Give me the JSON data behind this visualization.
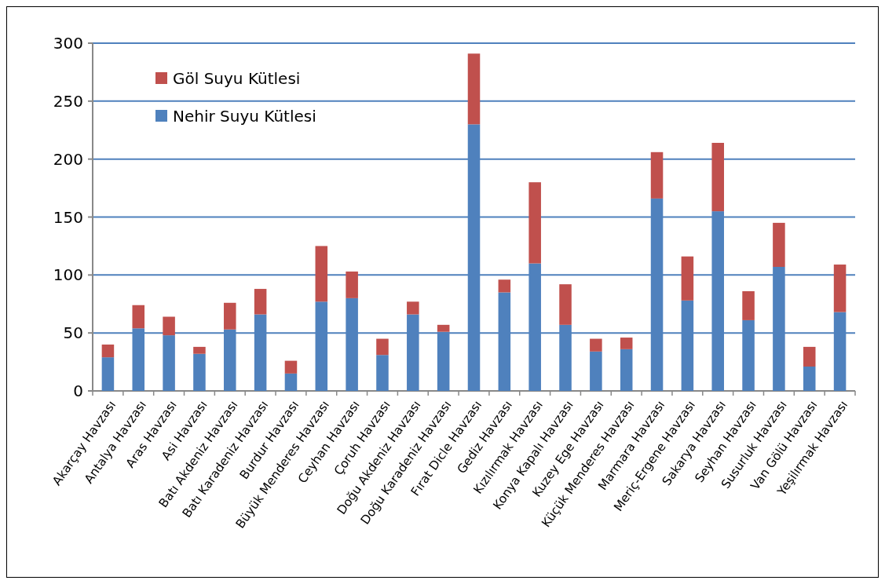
{
  "chart_data": {
    "type": "bar",
    "stacked": true,
    "categories": [
      "Akarçay Havzası",
      "Antalya Havzası",
      "Aras Havzası",
      "Asi Havzası",
      "Batı Akdeniz Havzası",
      "Batı Karadeniz Havzası",
      "Burdur Havzası",
      "Büyük Menderes Havzası",
      "Ceyhan Havzası",
      "Çoruh Havzası",
      "Doğu Akdeniz Havzası",
      "Doğu Karadeniz Havzası",
      "Fırat Dicle Havzası",
      "Gediz Havzası",
      "Kızılırmak Havzası",
      "Konya Kapalı Havzası",
      "Kuzey Ege Havzası",
      "Küçük Menderes Havzası",
      "Marmara Havzası",
      "Meriç-Ergene Havzası",
      "Sakarya Havzası",
      "Seyhan Havzası",
      "Susurluk Havzası",
      "Van Gölü Havzası",
      "Yeşilırmak Havzası"
    ],
    "series": [
      {
        "name": "Nehir Suyu Kütlesi",
        "color": "#4f81bd",
        "values": [
          29,
          54,
          48,
          32,
          53,
          66,
          15,
          77,
          80,
          31,
          66,
          51,
          230,
          85,
          110,
          57,
          34,
          36,
          166,
          78,
          155,
          61,
          107,
          21,
          68
        ]
      },
      {
        "name": "Göl Suyu Kütlesi",
        "color": "#c0504d",
        "values": [
          11,
          20,
          16,
          6,
          23,
          22,
          11,
          48,
          23,
          14,
          11,
          6,
          61,
          11,
          70,
          35,
          11,
          10,
          40,
          38,
          59,
          25,
          38,
          17,
          41
        ]
      }
    ],
    "ylim": [
      0,
      300
    ],
    "yticks": [
      0,
      50,
      100,
      150,
      200,
      250,
      300
    ],
    "grid": "y",
    "legend": "top left"
  }
}
